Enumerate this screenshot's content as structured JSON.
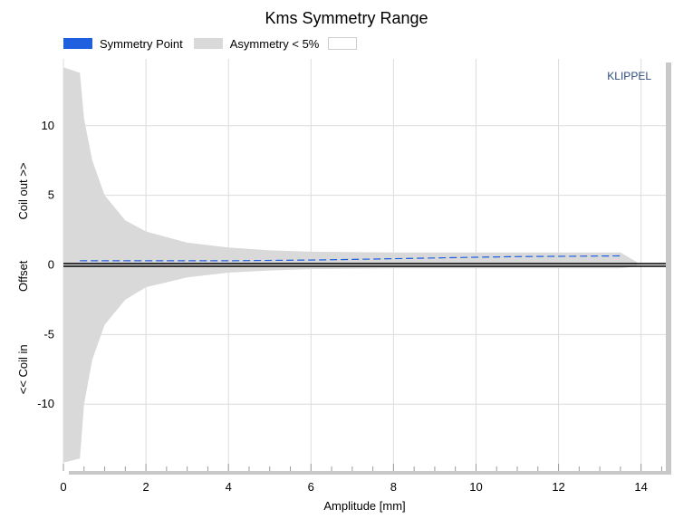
{
  "chart_data": {
    "type": "area",
    "title": "Kms Symmetry Range",
    "xlabel": "Amplitude [mm]",
    "ylabel_parts": [
      "<< Coil in",
      "Offset",
      "Coil out >>"
    ],
    "xlim": [
      0,
      14.6
    ],
    "ylim": [
      -14.8,
      14.8
    ],
    "xticks": [
      0,
      2,
      4,
      6,
      8,
      10,
      12,
      14
    ],
    "yticks": [
      -10,
      -5,
      0,
      5,
      10
    ],
    "grid": true,
    "legend_position": "top-left",
    "watermark": "KLIPPEL",
    "series": [
      {
        "name": "Symmetry Point",
        "kind": "dashed-line",
        "color": "#1f5fe0",
        "x": [
          0.4,
          2,
          4,
          6,
          7,
          8,
          9,
          10,
          11,
          12,
          13.5
        ],
        "y": [
          0.3,
          0.3,
          0.3,
          0.35,
          0.4,
          0.45,
          0.5,
          0.55,
          0.6,
          0.62,
          0.65
        ]
      },
      {
        "name": "Asymmetry < 5%",
        "kind": "band",
        "color": "#d9d9d9",
        "x": [
          0,
          0.4,
          0.5,
          0.7,
          1.0,
          1.5,
          2.0,
          3.0,
          4.0,
          5.0,
          6.0,
          8.0,
          10.0,
          12.0,
          13.5,
          13.9
        ],
        "upper": [
          14.2,
          13.8,
          10.5,
          7.5,
          5.0,
          3.2,
          2.4,
          1.6,
          1.25,
          1.05,
          0.95,
          0.9,
          0.9,
          0.9,
          0.9,
          0.2
        ],
        "lower": [
          -14.2,
          -13.9,
          -10.0,
          -6.8,
          -4.3,
          -2.5,
          -1.6,
          -0.9,
          -0.55,
          -0.4,
          -0.3,
          -0.25,
          -0.25,
          -0.25,
          -0.25,
          -0.1
        ]
      },
      {
        "name": "",
        "kind": "zero-line",
        "color": "#000000"
      }
    ]
  },
  "legend": [
    {
      "label": "Symmetry Point",
      "color": "#1f5fe0"
    },
    {
      "label": "Asymmetry < 5%",
      "color": "#d9d9d9"
    },
    {
      "label": "",
      "color": "#ffffff"
    }
  ]
}
